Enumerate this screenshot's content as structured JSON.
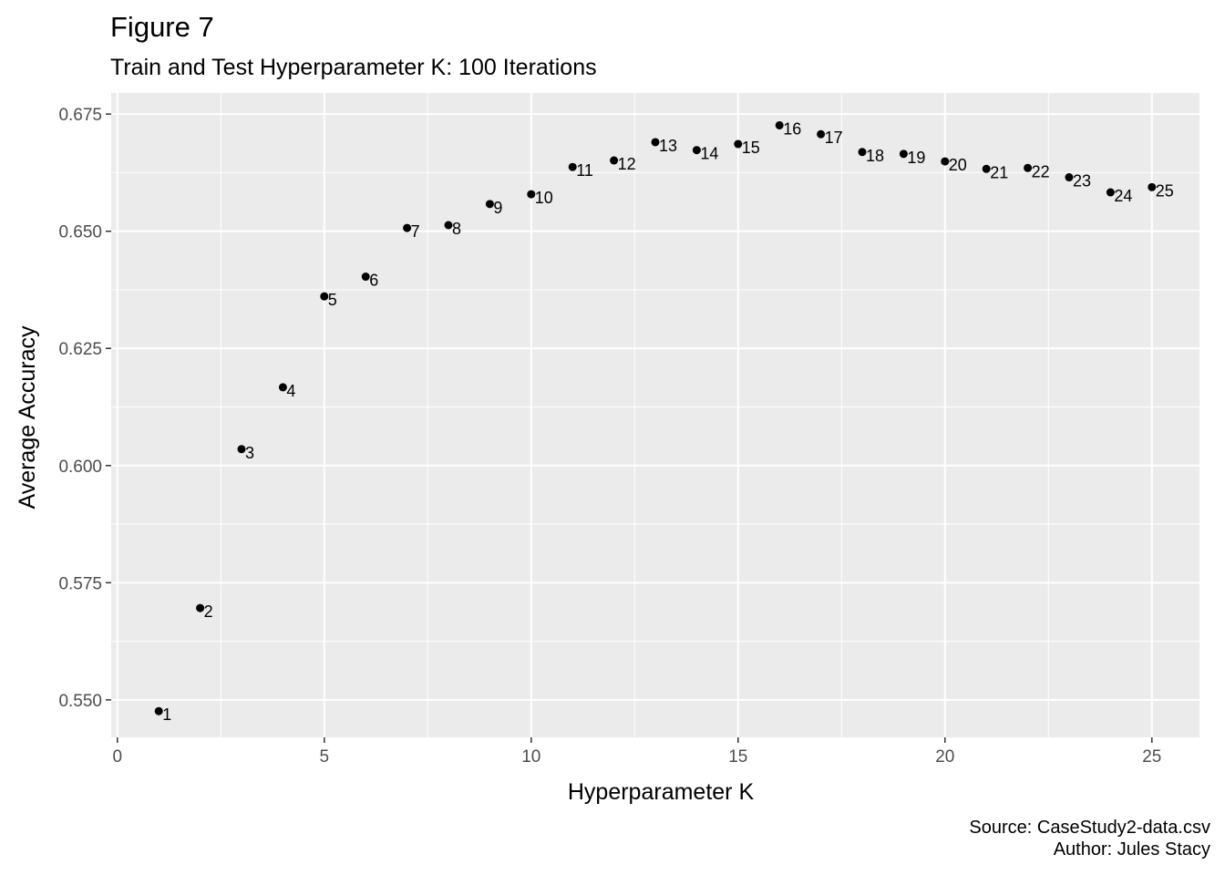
{
  "figure": {
    "title": "Figure 7",
    "subtitle": "Train and Test Hyperparameter K: 100 Iterations",
    "caption_source": "Source: CaseStudy2-data.csv",
    "caption_author": "Author: Jules Stacy"
  },
  "chart_data": {
    "type": "scatter",
    "title": "Figure 7",
    "subtitle": "Train and Test Hyperparameter K: 100 Iterations",
    "xlabel": "Hyperparameter K",
    "ylabel": "Average Accuracy",
    "xlim": [
      -0.15,
      26.15
    ],
    "ylim": [
      0.542,
      0.6795
    ],
    "xticks": [
      0,
      5,
      10,
      15,
      20,
      25
    ],
    "xtick_labels": [
      "0",
      "5",
      "10",
      "15",
      "20",
      "25"
    ],
    "yticks": [
      0.55,
      0.575,
      0.6,
      0.625,
      0.65,
      0.675
    ],
    "ytick_labels": [
      "0.550",
      "0.575",
      "0.600",
      "0.625",
      "0.650",
      "0.675"
    ],
    "grid": true,
    "legend": "none",
    "colors": {
      "panel": "#ebebeb",
      "grid": "#ffffff",
      "point": "#000000",
      "axis_text": "#4d4d4d"
    },
    "points": [
      {
        "x": 1,
        "y": 0.5476,
        "label": "1"
      },
      {
        "x": 2,
        "y": 0.5696,
        "label": "2"
      },
      {
        "x": 3,
        "y": 0.6035,
        "label": "3"
      },
      {
        "x": 4,
        "y": 0.6167,
        "label": "4"
      },
      {
        "x": 5,
        "y": 0.6361,
        "label": "5"
      },
      {
        "x": 6,
        "y": 0.6403,
        "label": "6"
      },
      {
        "x": 7,
        "y": 0.6507,
        "label": "7"
      },
      {
        "x": 8,
        "y": 0.6513,
        "label": "8"
      },
      {
        "x": 9,
        "y": 0.6558,
        "label": "9"
      },
      {
        "x": 10,
        "y": 0.6579,
        "label": "10"
      },
      {
        "x": 11,
        "y": 0.6637,
        "label": "11"
      },
      {
        "x": 12,
        "y": 0.6651,
        "label": "12"
      },
      {
        "x": 13,
        "y": 0.669,
        "label": "13"
      },
      {
        "x": 14,
        "y": 0.6673,
        "label": "14"
      },
      {
        "x": 15,
        "y": 0.6686,
        "label": "15"
      },
      {
        "x": 16,
        "y": 0.6726,
        "label": "16"
      },
      {
        "x": 17,
        "y": 0.6707,
        "label": "17"
      },
      {
        "x": 18,
        "y": 0.6669,
        "label": "18"
      },
      {
        "x": 19,
        "y": 0.6665,
        "label": "19"
      },
      {
        "x": 20,
        "y": 0.6649,
        "label": "20"
      },
      {
        "x": 21,
        "y": 0.6633,
        "label": "21"
      },
      {
        "x": 22,
        "y": 0.6635,
        "label": "22"
      },
      {
        "x": 23,
        "y": 0.6615,
        "label": "23"
      },
      {
        "x": 24,
        "y": 0.6583,
        "label": "24"
      },
      {
        "x": 25,
        "y": 0.6594,
        "label": "25"
      }
    ]
  }
}
